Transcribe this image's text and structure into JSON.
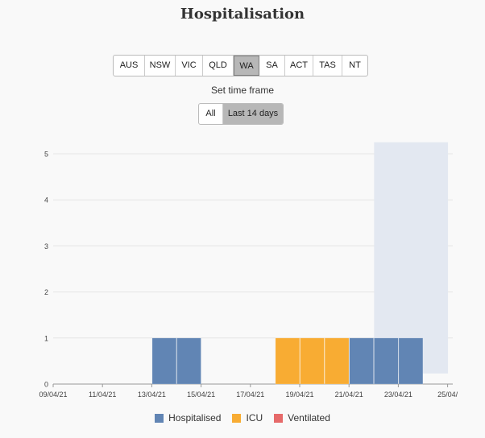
{
  "title": "Hospitalisation",
  "states": [
    "AUS",
    "NSW",
    "VIC",
    "QLD",
    "WA",
    "SA",
    "ACT",
    "TAS",
    "NT"
  ],
  "active_state": "WA",
  "time_frame": {
    "label": "Set time frame",
    "options": [
      "All",
      "Last 14 days"
    ],
    "active": "Last 14 days"
  },
  "colors": {
    "hospitalised": "#6185b4",
    "icu": "#f8ac33",
    "ventilated": "#e66a6a",
    "highlight": "#e3e8f1"
  },
  "chart_data": {
    "type": "bar",
    "stacked": true,
    "x_tick_labels": [
      "09/04/21",
      "11/04/21",
      "13/04/21",
      "15/04/21",
      "17/04/21",
      "19/04/21",
      "21/04/21",
      "23/04/21",
      "25/04/"
    ],
    "dates": [
      "09/04/21",
      "10/04/21",
      "11/04/21",
      "12/04/21",
      "13/04/21",
      "14/04/21",
      "15/04/21",
      "16/04/21",
      "17/04/21",
      "18/04/21",
      "19/04/21",
      "20/04/21",
      "21/04/21",
      "22/04/21",
      "23/04/21",
      "24/04/21"
    ],
    "series": [
      {
        "name": "Hospitalised",
        "values": [
          0,
          0,
          0,
          0,
          1,
          1,
          0,
          0,
          0,
          0,
          0,
          0,
          1,
          1,
          1,
          0
        ]
      },
      {
        "name": "ICU",
        "values": [
          0,
          0,
          0,
          0,
          0,
          0,
          0,
          0,
          0,
          1,
          1,
          1,
          0,
          0,
          0,
          0
        ]
      },
      {
        "name": "Ventilated",
        "values": [
          0,
          0,
          0,
          0,
          0,
          0,
          0,
          0,
          0,
          0,
          0,
          0,
          0,
          0,
          0,
          0
        ]
      }
    ],
    "highlight_range": [
      "22/04/21",
      "24/04/21"
    ],
    "y_ticks": [
      0,
      1,
      2,
      3,
      4,
      5
    ],
    "ylim": [
      0,
      5.25
    ],
    "grid": true,
    "legend_position": "bottom-center"
  }
}
